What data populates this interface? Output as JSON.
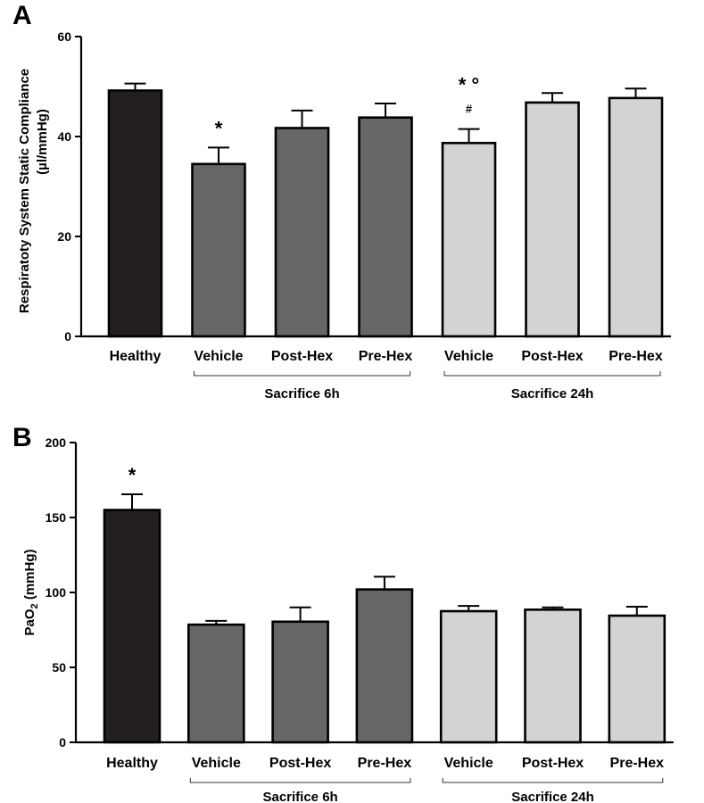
{
  "colors": {
    "healthy": "#231f20",
    "sacrifice_6h": "#666666",
    "sacrifice_24h": "#d1d3d4",
    "axis": "#000000"
  },
  "chart_data": [
    {
      "panel": "A",
      "type": "bar",
      "ylabel_line1": "Respiratoty System  Static Compliance",
      "ylabel_line2": "(µl/mmHg)",
      "ylim": [
        0,
        60
      ],
      "yticks": [
        0,
        20,
        40,
        60
      ],
      "categories": [
        "Healthy",
        "Vehicle",
        "Post-Hex",
        "Pre-Hex",
        "Vehicle",
        "Post-Hex",
        "Pre-Hex"
      ],
      "groups": [
        "healthy",
        "sacrifice_6h",
        "sacrifice_6h",
        "sacrifice_6h",
        "sacrifice_24h",
        "sacrifice_24h",
        "sacrifice_24h"
      ],
      "values": [
        49.2,
        34.5,
        41.7,
        43.8,
        38.7,
        46.8,
        47.7
      ],
      "errors": [
        1.4,
        3.3,
        3.5,
        2.8,
        2.8,
        1.9,
        1.9
      ],
      "annotations": [
        {
          "index": 1,
          "lines": [
            "*"
          ]
        },
        {
          "index": 4,
          "lines": [
            "* °",
            "#"
          ]
        }
      ],
      "group_brackets": [
        {
          "label": "Sacrifice 6h",
          "from": 1,
          "to": 3
        },
        {
          "label": "Sacrifice 24h",
          "from": 4,
          "to": 6
        }
      ]
    },
    {
      "panel": "B",
      "type": "bar",
      "ylabel_main": "PaO",
      "ylabel_sub": "2",
      "ylabel_unit": " (mmHg)",
      "ylim": [
        0,
        200
      ],
      "yticks": [
        0,
        50,
        100,
        150,
        200
      ],
      "categories": [
        "Healthy",
        "Vehicle",
        "Post-Hex",
        "Pre-Hex",
        "Vehicle",
        "Post-Hex",
        "Pre-Hex"
      ],
      "groups": [
        "healthy",
        "sacrifice_6h",
        "sacrifice_6h",
        "sacrifice_6h",
        "sacrifice_24h",
        "sacrifice_24h",
        "sacrifice_24h"
      ],
      "values": [
        155,
        78.5,
        80.5,
        102,
        87.5,
        88.5,
        84.5
      ],
      "errors": [
        10.5,
        2.5,
        9.5,
        8.5,
        3.5,
        1.5,
        6.0
      ],
      "annotations": [
        {
          "index": 0,
          "lines": [
            "*"
          ]
        }
      ],
      "group_brackets": [
        {
          "label": "Sacrifice 6h",
          "from": 1,
          "to": 3
        },
        {
          "label": "Sacrifice 24h",
          "from": 4,
          "to": 6
        }
      ]
    }
  ]
}
